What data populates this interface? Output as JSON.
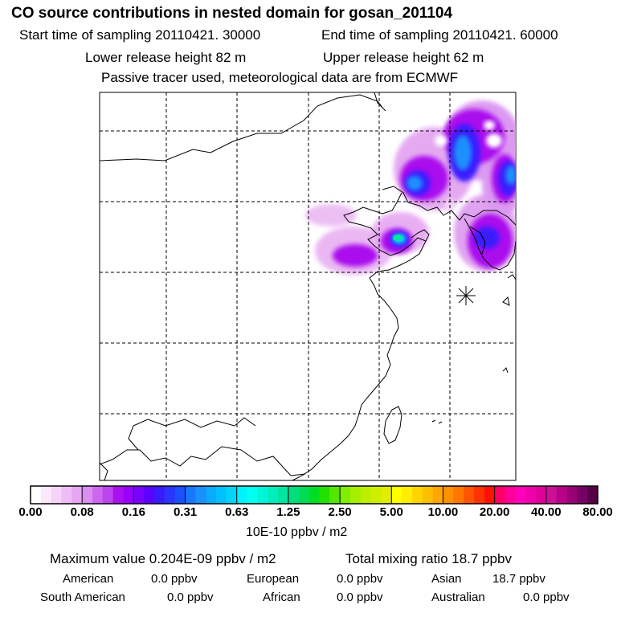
{
  "header": {
    "title": "CO  source contributions in nested domain for gosan_201104",
    "start_sampling": "Start time of sampling 20110421. 30000",
    "end_sampling": "End time of sampling 20110421. 60000",
    "lower_release": "Lower release height   82 m",
    "upper_release": "Upper release height   62 m",
    "tracer_note": "Passive tracer used, meteorological data are from ECMWF"
  },
  "colorbar": {
    "tick_labels": [
      "0.00",
      "0.08",
      "0.16",
      "0.31",
      "0.63",
      "1.25",
      "2.50",
      "5.00",
      "10.00",
      "20.00",
      "40.00",
      "80.00"
    ],
    "unit_label": "10E-10 ppbv / m2",
    "colors": [
      "#ffffff",
      "#fbe8fb",
      "#f6d4f7",
      "#eebdf5",
      "#e6a6f2",
      "#d98ff0",
      "#cc66ee",
      "#bb44ee",
      "#aa11ee",
      "#9900ff",
      "#7a00ff",
      "#5c00ff",
      "#3a1aff",
      "#2a35ff",
      "#1a50ff",
      "#1877ff",
      "#1a90ff",
      "#0aaaff",
      "#00c0ff",
      "#00d5ff",
      "#00f2ff",
      "#00ffee",
      "#00f5d8",
      "#00eebb",
      "#00e6a0",
      "#00dd80",
      "#00dd55",
      "#00dd22",
      "#22e000",
      "#55e600",
      "#80ee00",
      "#a6ee00",
      "#bbee00",
      "#cfee00",
      "#e2ee00",
      "#ffff00",
      "#ffee00",
      "#ffd500",
      "#ffbf00",
      "#ffa600",
      "#ff9000",
      "#ff7700",
      "#ff5500",
      "#ff3300",
      "#ff1100",
      "#ff0066",
      "#ff0099",
      "#ff00bb",
      "#ee00aa",
      "#dd0099",
      "#cc1199",
      "#bb0088",
      "#990077",
      "#770066",
      "#550044"
    ]
  },
  "map": {
    "station_marker": "star-marker"
  },
  "summary": {
    "maximum_value": "Maximum value  0.204E-09 ppbv / m2",
    "total_mixing": "Total mixing ratio       18.7 ppbv",
    "regions": [
      {
        "name": "American",
        "value": "0.0 ppbv"
      },
      {
        "name": "European",
        "value": "0.0 ppbv"
      },
      {
        "name": "Asian",
        "value": "18.7 ppbv"
      },
      {
        "name": "South American",
        "value": "0.0 ppbv"
      },
      {
        "name": "African",
        "value": "0.0 ppbv"
      },
      {
        "name": "Australian",
        "value": "0.0 ppbv"
      }
    ]
  }
}
